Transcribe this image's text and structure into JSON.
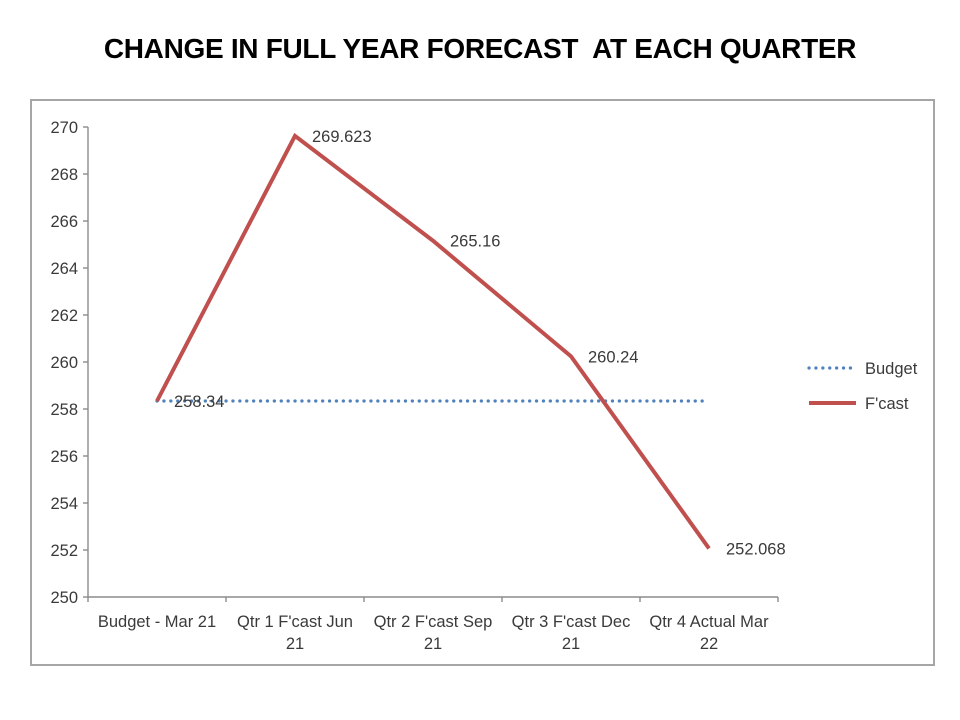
{
  "chart_data": {
    "type": "line",
    "title": "CHANGE IN FULL YEAR FORECAST  AT EACH QUARTER",
    "categories": [
      "Budget - Mar 21",
      "Qtr 1 F'cast Jun\n21",
      "Qtr 2 F'cast Sep\n21",
      "Qtr 3 F'cast Dec\n21",
      "Qtr 4 Actual Mar\n22"
    ],
    "series": [
      {
        "name": "Budget",
        "style": "dotted",
        "color": "#4F81BD",
        "values": [
          258.34,
          258.34,
          258.34,
          258.34,
          258.34
        ],
        "labels": null
      },
      {
        "name": "F'cast",
        "style": "solid",
        "color": "#C0504D",
        "values": [
          258.34,
          269.623,
          265.16,
          260.24,
          252.068
        ],
        "labels": [
          "258.34",
          "269.623",
          "265.16",
          "260.24",
          "252.068"
        ]
      }
    ],
    "ylim": [
      250,
      270
    ],
    "yticks": [
      250,
      252,
      254,
      256,
      258,
      260,
      262,
      264,
      266,
      268,
      270
    ],
    "grid": false,
    "legend_position": "right",
    "legend": [
      "Budget",
      "F'cast"
    ]
  },
  "colors": {
    "axis": "#8C8C8C",
    "text": "#3A3A3A",
    "frame_border": "#A6A6A6",
    "budget_blue": "#4F81BD",
    "forecast_red": "#C0504D"
  }
}
